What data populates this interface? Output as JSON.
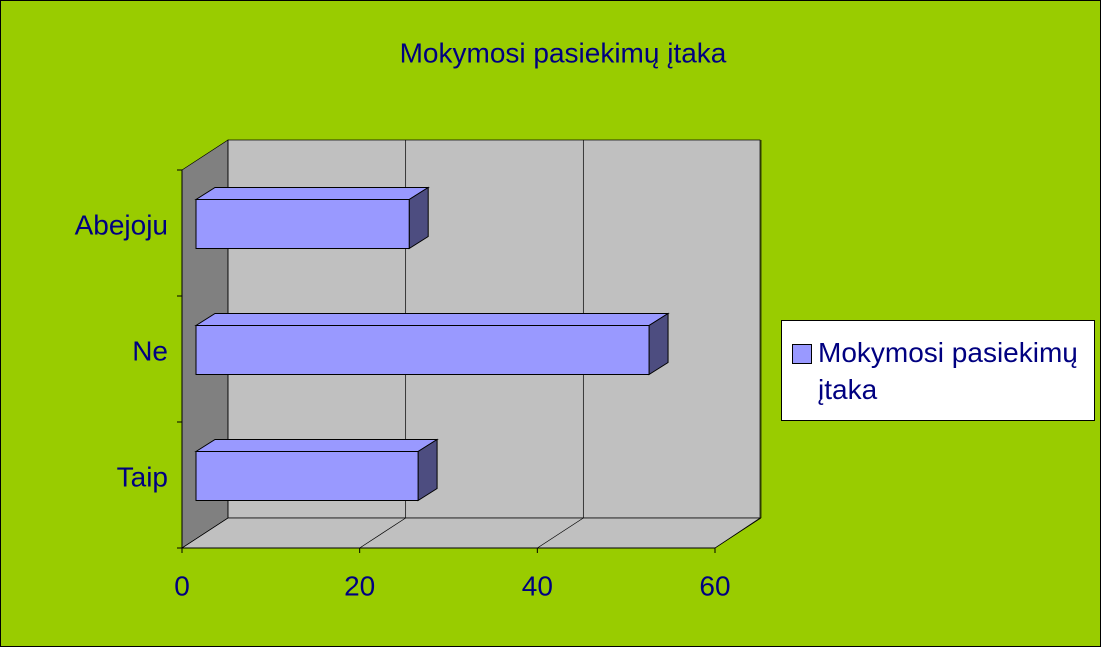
{
  "chart_data": {
    "type": "bar",
    "orientation": "horizontal",
    "title": "Mokymosi pasiekimų įtaka",
    "categories": [
      "Taip",
      "Ne",
      "Abejoju"
    ],
    "series": [
      {
        "name": "Mokymosi pasiekimų įtaka",
        "color": "#9999ff",
        "values": [
          25,
          51,
          24
        ]
      }
    ],
    "xlim": [
      0,
      60
    ],
    "xticks": [
      0,
      20,
      40,
      60
    ],
    "grid": true,
    "legend": "right"
  }
}
